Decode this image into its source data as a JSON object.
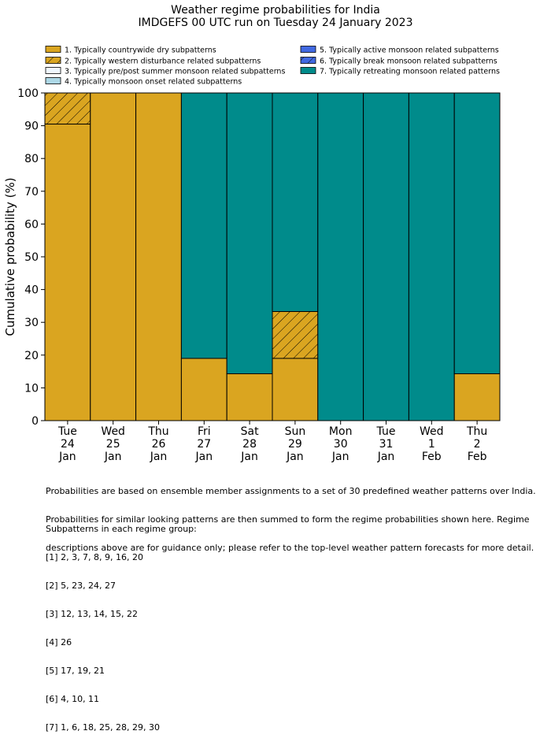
{
  "chart_data": {
    "type": "bar",
    "title": "Weather regime probabilities for India",
    "subtitle": "IMDGEFS 00 UTC run on Tuesday 24 January 2023",
    "ylabel": "Cumulative probability (%)",
    "xlabel": "",
    "ylim": [
      0,
      100
    ],
    "yticks": [
      0,
      10,
      20,
      30,
      40,
      50,
      60,
      70,
      80,
      90,
      100
    ],
    "stacked": true,
    "grid": false,
    "legend_position": "top",
    "categories": [
      [
        "Tue",
        "24",
        "Jan"
      ],
      [
        "Wed",
        "25",
        "Jan"
      ],
      [
        "Thu",
        "26",
        "Jan"
      ],
      [
        "Fri",
        "27",
        "Jan"
      ],
      [
        "Sat",
        "28",
        "Jan"
      ],
      [
        "Sun",
        "29",
        "Jan"
      ],
      [
        "Mon",
        "30",
        "Jan"
      ],
      [
        "Tue",
        "31",
        "Jan"
      ],
      [
        "Wed",
        "1",
        "Feb"
      ],
      [
        "Thu",
        "2",
        "Feb"
      ]
    ],
    "series": [
      {
        "name": "1. Typically countrywide dry subpatterns",
        "color": "#DAA520",
        "hatch": false,
        "values": [
          90.5,
          100,
          100,
          19,
          14.3,
          19,
          0,
          0,
          0,
          14.3
        ]
      },
      {
        "name": "2. Typically western disturbance related subpatterns",
        "color": "#DAA520",
        "hatch": true,
        "values": [
          9.5,
          0,
          0,
          0,
          0,
          14.3,
          0,
          0,
          0,
          0
        ]
      },
      {
        "name": "3. Typically pre/post summer monsoon related subpatterns",
        "color": "#F0F8FF",
        "hatch": false,
        "values": [
          0,
          0,
          0,
          0,
          0,
          0,
          0,
          0,
          0,
          0
        ]
      },
      {
        "name": "4. Typically monsoon onset related subpatterns",
        "color": "#ADD8E6",
        "hatch": false,
        "values": [
          0,
          0,
          0,
          0,
          0,
          0,
          0,
          0,
          0,
          0
        ]
      },
      {
        "name": "5. Typically active monsoon related subpatterns",
        "color": "#4169E1",
        "hatch": false,
        "values": [
          0,
          0,
          0,
          0,
          0,
          0,
          0,
          0,
          0,
          0
        ]
      },
      {
        "name": "6. Typically break monsoon related subpatterns",
        "color": "#4169E1",
        "hatch": true,
        "values": [
          0,
          0,
          0,
          0,
          0,
          0,
          0,
          0,
          0,
          0
        ]
      },
      {
        "name": "7. Typically retreating monsoon related patterns",
        "color": "#008B8B",
        "hatch": false,
        "values": [
          0,
          0,
          0,
          81,
          85.7,
          66.7,
          100,
          100,
          100,
          85.7
        ]
      }
    ]
  },
  "footer": {
    "notes": [
      "Probabilities are based on ensemble member assignments to a set of 30 predefined weather patterns over India.",
      "Probabilities for similar looking patterns are then summed to form the regime probabilities shown here. Regime",
      "descriptions above are for guidance only; please refer to the top-level weather pattern forecasts for more detail."
    ],
    "groups_heading": "Subpatterns in each regime group:",
    "groups": [
      "[1] 2, 3, 7, 8, 9, 16, 20",
      "[2] 5, 23, 24, 27",
      "[3] 12, 13, 14, 15, 22",
      "[4] 26",
      "[5] 17, 19, 21",
      "[6] 4, 10, 11",
      "[7] 1, 6, 18, 25, 28, 29, 30"
    ]
  }
}
